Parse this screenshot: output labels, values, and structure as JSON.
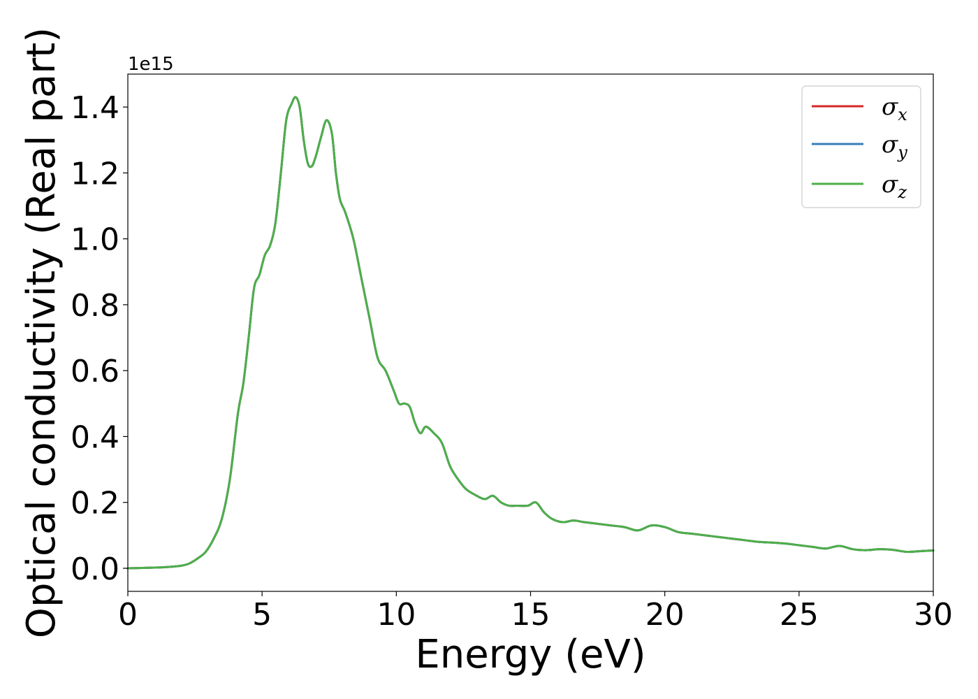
{
  "chart_data": {
    "type": "line",
    "xlabel": "Energy (eV)",
    "ylabel": "Optical conductivity (Real part)",
    "offset_text": "1e15",
    "y_scale_factor": 1000000000000000.0,
    "xlim": [
      0,
      30
    ],
    "ylim": [
      -0.07,
      1.5
    ],
    "xticks": [
      0,
      5,
      10,
      15,
      20,
      25,
      30
    ],
    "xtick_labels": [
      "0",
      "5",
      "10",
      "15",
      "20",
      "25",
      "30"
    ],
    "yticks": [
      0.0,
      0.2,
      0.4,
      0.6,
      0.8,
      1.0,
      1.2,
      1.4
    ],
    "ytick_labels": [
      "0.0",
      "0.2",
      "0.4",
      "0.6",
      "0.8",
      "1.0",
      "1.2",
      "1.4"
    ],
    "grid": false,
    "legend_position": "top-right",
    "x": [
      0,
      1,
      1.5,
      2,
      2.3,
      2.6,
      2.9,
      3.2,
      3.5,
      3.8,
      4.1,
      4.3,
      4.5,
      4.7,
      4.9,
      5.1,
      5.3,
      5.5,
      5.7,
      5.9,
      6.1,
      6.25,
      6.4,
      6.55,
      6.7,
      6.85,
      7.0,
      7.2,
      7.4,
      7.6,
      7.75,
      7.9,
      8.1,
      8.4,
      8.7,
      9.0,
      9.3,
      9.6,
      9.9,
      10.1,
      10.3,
      10.5,
      10.7,
      10.9,
      11.1,
      11.4,
      11.7,
      12.0,
      12.3,
      12.6,
      13.0,
      13.3,
      13.6,
      13.9,
      14.2,
      14.5,
      14.9,
      15.2,
      15.5,
      15.8,
      16.2,
      16.6,
      17.0,
      17.5,
      18.0,
      18.5,
      19.0,
      19.5,
      20.0,
      20.5,
      21.0,
      21.5,
      22.0,
      22.5,
      23.0,
      23.5,
      24.0,
      24.5,
      25.0,
      25.5,
      26.0,
      26.5,
      27.0,
      27.5,
      28.0,
      28.5,
      29.0,
      29.5,
      30.0
    ],
    "series": [
      {
        "name": "σx",
        "color": "#d62728",
        "values": [
          0.0,
          0.002,
          0.004,
          0.008,
          0.015,
          0.03,
          0.05,
          0.09,
          0.15,
          0.27,
          0.47,
          0.56,
          0.7,
          0.85,
          0.89,
          0.95,
          0.98,
          1.05,
          1.2,
          1.36,
          1.41,
          1.43,
          1.4,
          1.3,
          1.23,
          1.22,
          1.25,
          1.31,
          1.36,
          1.32,
          1.2,
          1.12,
          1.08,
          1.0,
          0.88,
          0.76,
          0.64,
          0.6,
          0.54,
          0.5,
          0.5,
          0.49,
          0.44,
          0.41,
          0.43,
          0.41,
          0.38,
          0.31,
          0.27,
          0.24,
          0.22,
          0.21,
          0.22,
          0.2,
          0.19,
          0.19,
          0.19,
          0.2,
          0.17,
          0.15,
          0.14,
          0.145,
          0.14,
          0.135,
          0.13,
          0.125,
          0.115,
          0.13,
          0.125,
          0.11,
          0.105,
          0.1,
          0.095,
          0.09,
          0.085,
          0.08,
          0.078,
          0.075,
          0.07,
          0.065,
          0.06,
          0.068,
          0.058,
          0.055,
          0.058,
          0.056,
          0.05,
          0.052,
          0.054
        ]
      },
      {
        "name": "σy",
        "color": "#377eb8",
        "values": [
          0.0,
          0.002,
          0.004,
          0.008,
          0.015,
          0.03,
          0.05,
          0.09,
          0.15,
          0.27,
          0.47,
          0.56,
          0.7,
          0.85,
          0.89,
          0.95,
          0.98,
          1.05,
          1.2,
          1.36,
          1.41,
          1.43,
          1.4,
          1.3,
          1.23,
          1.22,
          1.25,
          1.31,
          1.36,
          1.32,
          1.2,
          1.12,
          1.08,
          1.0,
          0.88,
          0.76,
          0.64,
          0.6,
          0.54,
          0.5,
          0.5,
          0.49,
          0.44,
          0.41,
          0.43,
          0.41,
          0.38,
          0.31,
          0.27,
          0.24,
          0.22,
          0.21,
          0.22,
          0.2,
          0.19,
          0.19,
          0.19,
          0.2,
          0.17,
          0.15,
          0.14,
          0.145,
          0.14,
          0.135,
          0.13,
          0.125,
          0.115,
          0.13,
          0.125,
          0.11,
          0.105,
          0.1,
          0.095,
          0.09,
          0.085,
          0.08,
          0.078,
          0.075,
          0.07,
          0.065,
          0.06,
          0.068,
          0.058,
          0.055,
          0.058,
          0.056,
          0.05,
          0.052,
          0.054
        ]
      },
      {
        "name": "σz",
        "color": "#4daf4a",
        "values": [
          0.0,
          0.002,
          0.004,
          0.008,
          0.015,
          0.03,
          0.05,
          0.09,
          0.15,
          0.27,
          0.47,
          0.56,
          0.7,
          0.85,
          0.89,
          0.95,
          0.98,
          1.05,
          1.2,
          1.36,
          1.41,
          1.43,
          1.4,
          1.3,
          1.23,
          1.22,
          1.25,
          1.31,
          1.36,
          1.32,
          1.2,
          1.12,
          1.08,
          1.0,
          0.88,
          0.76,
          0.64,
          0.6,
          0.54,
          0.5,
          0.5,
          0.49,
          0.44,
          0.41,
          0.43,
          0.41,
          0.38,
          0.31,
          0.27,
          0.24,
          0.22,
          0.21,
          0.22,
          0.2,
          0.19,
          0.19,
          0.19,
          0.2,
          0.17,
          0.15,
          0.14,
          0.145,
          0.14,
          0.135,
          0.13,
          0.125,
          0.115,
          0.13,
          0.125,
          0.11,
          0.105,
          0.1,
          0.095,
          0.09,
          0.085,
          0.08,
          0.078,
          0.075,
          0.07,
          0.065,
          0.06,
          0.068,
          0.058,
          0.055,
          0.058,
          0.056,
          0.05,
          0.052,
          0.054
        ]
      }
    ],
    "legend": [
      {
        "symbol": "σ",
        "sub": "x",
        "color": "#d62728"
      },
      {
        "symbol": "σ",
        "sub": "y",
        "color": "#377eb8"
      },
      {
        "symbol": "σ",
        "sub": "z",
        "color": "#4daf4a"
      }
    ]
  }
}
